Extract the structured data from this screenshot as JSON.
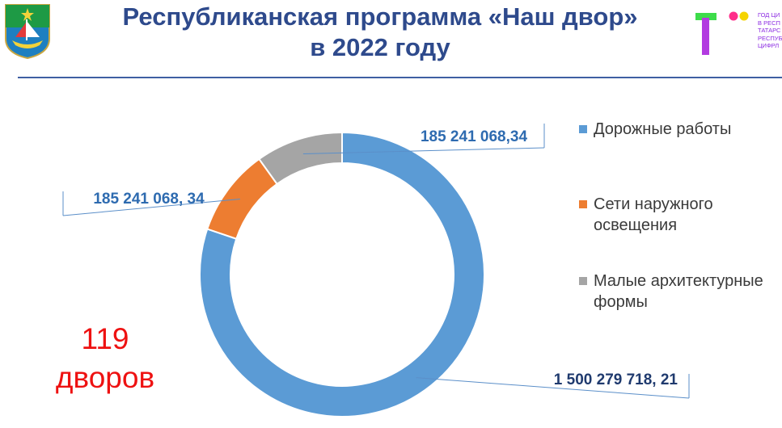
{
  "header": {
    "title_line1": "Республиканская программа «Наш двор»",
    "title_line2": "в 2022 году",
    "logo_text": [
      "ГОД ЦИ",
      "В РЕСП",
      "ТАТАРС",
      "РЕСПУБ",
      "ЦИФРЛ"
    ]
  },
  "colors": {
    "title": "#2E4A8C",
    "rule": "#3F5FA3",
    "highlight": "#EE1111"
  },
  "courtyards": {
    "count": "119",
    "unit": "дворов"
  },
  "chart_data": {
    "type": "pie",
    "donut": true,
    "title": "",
    "legend_position": "right",
    "series": [
      {
        "name": "Дорожные работы",
        "value": 1500279718.21,
        "label": "1 500 279 718, 21",
        "color": "#5B9BD5"
      },
      {
        "name": "Сети наружного освещения",
        "value": 185241068.34,
        "label": "185 241 068, 34",
        "color": "#ED7D31"
      },
      {
        "name": "Малые архитектурные формы",
        "value": 185241068.34,
        "label": "185 241 068,34",
        "color": "#A5A5A5"
      }
    ]
  }
}
